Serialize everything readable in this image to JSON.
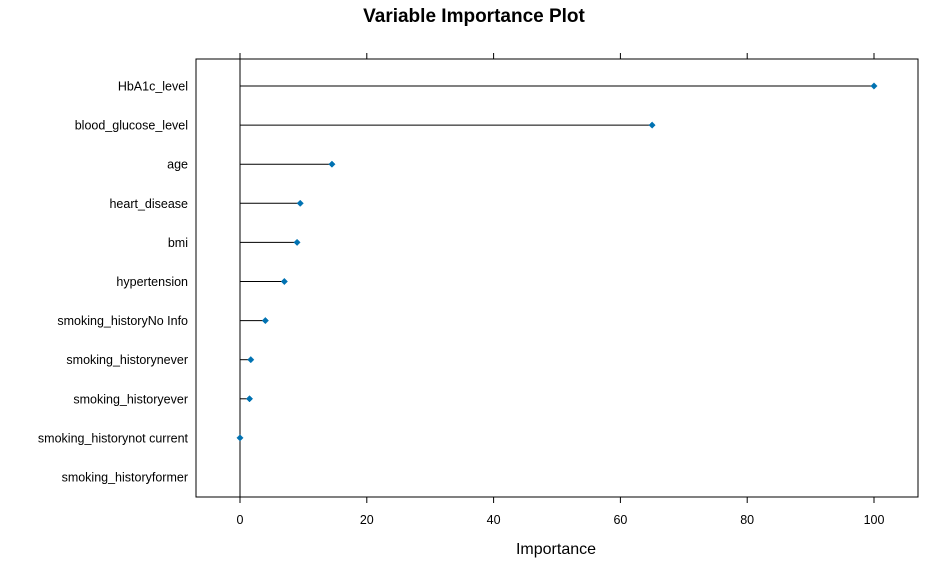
{
  "chart_data": {
    "type": "lollipop",
    "title": "Variable Importance Plot",
    "xlabel": "Importance",
    "ylabel": "",
    "xlim": [
      -7,
      107
    ],
    "xticks": [
      0,
      20,
      40,
      60,
      80,
      100
    ],
    "grid": false,
    "point_color": "#0072B2",
    "line_color": "#000000",
    "categories": [
      "HbA1c_level",
      "blood_glucose_level",
      "age",
      "heart_disease",
      "bmi",
      "hypertension",
      "smoking_historyNo Info",
      "smoking_historynever",
      "smoking_historyever",
      "smoking_historynot current",
      "smoking_historyformer"
    ],
    "values": [
      100,
      65,
      14.5,
      9.5,
      9,
      7,
      4,
      1.7,
      1.5,
      0,
      null
    ]
  }
}
